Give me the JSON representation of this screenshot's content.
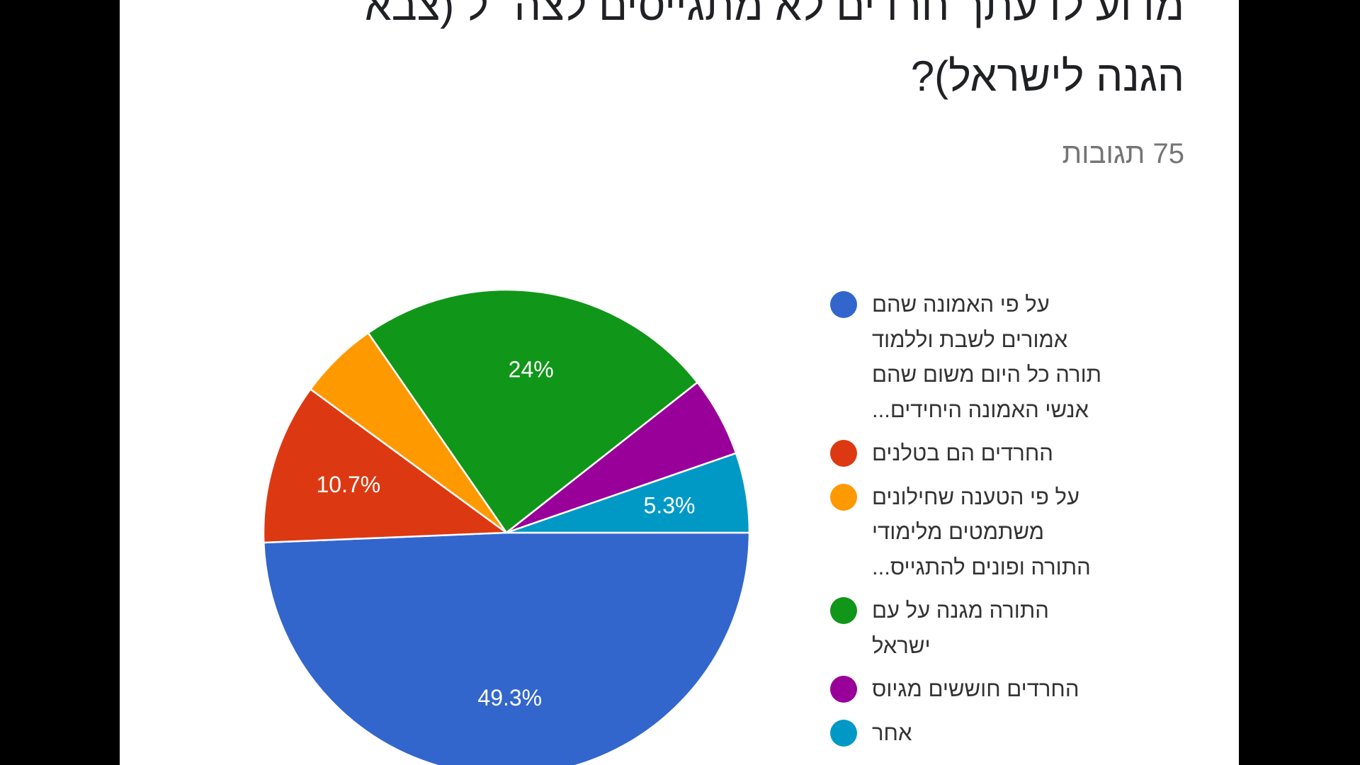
{
  "question": {
    "title_lines": [
      "מדוע לדעתך חרדים לא מתגייסים לצה״ל (צבא",
      "הגנה לישראל)?"
    ],
    "response_count": "75 תגובות"
  },
  "chart_data": {
    "type": "pie",
    "total_responses": 75,
    "start": "3 o'clock, clockwise",
    "slices": [
      {
        "label": "על פי האמונה שהם אמורים לשבת וללמוד תורה כל היום משום שהם אנשי האמונה היחידים...",
        "label_lines": [
          "על פי האמונה שהם",
          "אמורים לשבת וללמוד",
          "תורה כל היום משום שהם",
          "אנשי האמונה היחידים..."
        ],
        "percent": 49.3,
        "value_label": "49.3%",
        "color": "#3366cc"
      },
      {
        "label": "החרדים הם בטלנים",
        "label_lines": [
          "החרדים הם בטלנים"
        ],
        "percent": 10.7,
        "value_label": "10.7%",
        "color": "#dc3912"
      },
      {
        "label": "על פי הטענה שחילונים משתמטים מלימודי התורה ופונים להתגייס...",
        "label_lines": [
          "על פי הטענה שחילונים",
          "משתמטים מלימודי",
          "התורה ופונים להתגייס..."
        ],
        "percent": 5.3,
        "value_label": "",
        "color": "#ff9900"
      },
      {
        "label": "התורה מגנה על עם ישראל",
        "label_lines": [
          "התורה מגנה על עם",
          "ישראל"
        ],
        "percent": 24,
        "value_label": "24%",
        "color": "#109618"
      },
      {
        "label": "החרדים חוששים מגיוס",
        "label_lines": [
          "החרדים חוששים מגיוס"
        ],
        "percent": 5.3,
        "value_label": "",
        "color": "#990099"
      },
      {
        "label": "אחר",
        "label_lines": [
          "אחר"
        ],
        "percent": 5.3,
        "value_label": "5.3%",
        "color": "#0099c6"
      }
    ],
    "legend_position": "right"
  }
}
